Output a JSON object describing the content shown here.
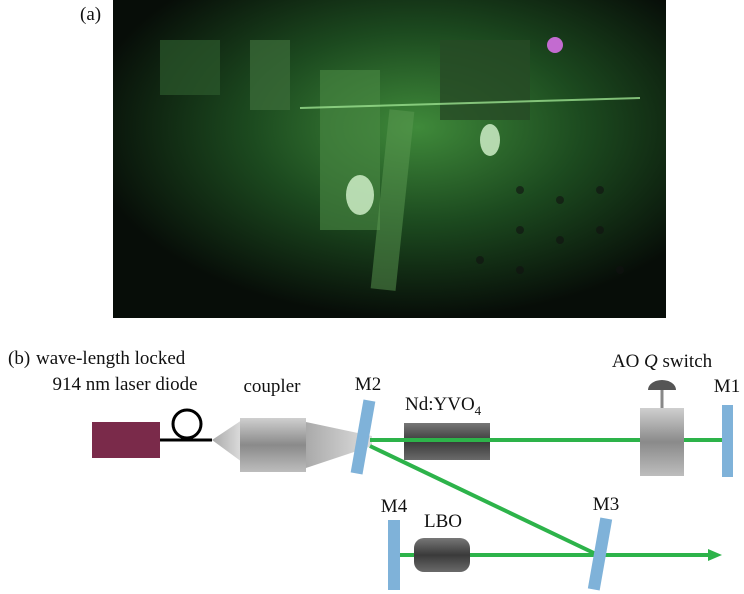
{
  "panel_a": {
    "label": "(a)"
  },
  "panel_b": {
    "label": "(b)",
    "labels": {
      "laser_line1": "wave-length locked",
      "laser_line2": "914 nm laser diode",
      "coupler": "coupler",
      "m2": "M2",
      "crystal": {
        "text": "Nd:YVO",
        "subscript": "4"
      },
      "switch": {
        "prefix": "AO ",
        "italic": "Q",
        "suffix": " switch"
      },
      "m1": "M1",
      "m4": "M4",
      "lbo": "LBO",
      "m3": "M3"
    }
  }
}
